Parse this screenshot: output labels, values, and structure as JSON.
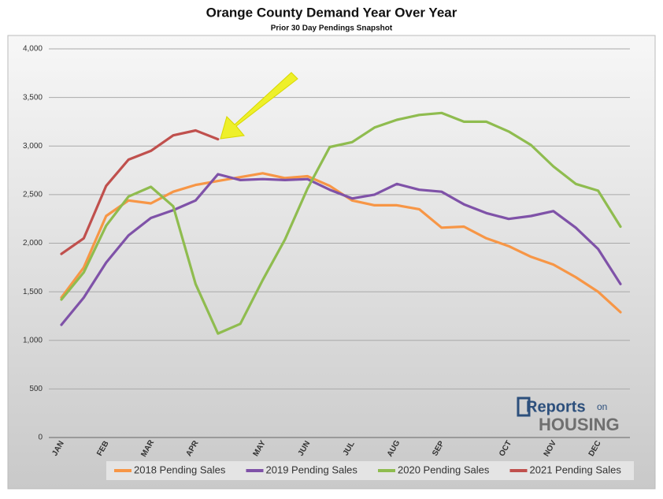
{
  "chart_data": {
    "type": "line",
    "title": "Orange County Demand Year Over Year",
    "subtitle": "Prior 30 Day Pendings Snapshot",
    "categories": [
      "JAN",
      null,
      "FEB",
      null,
      "MAR",
      null,
      "APR",
      null,
      null,
      "MAY",
      null,
      "JUN",
      null,
      "JUL",
      null,
      "AUG",
      null,
      "SEP",
      null,
      null,
      "OCT",
      null,
      "NOV",
      null,
      "DEC",
      null
    ],
    "series": [
      {
        "name": "2018 Pending Sales",
        "color": "#f79646",
        "values": [
          1440,
          1750,
          2280,
          2440,
          2410,
          2530,
          2600,
          2640,
          2680,
          2720,
          2670,
          2690,
          2590,
          2440,
          2390,
          2390,
          2350,
          2160,
          2170,
          2050,
          1970,
          1860,
          1780,
          1650,
          1500,
          1290
        ]
      },
      {
        "name": "2019 Pending Sales",
        "color": "#7f52a8",
        "values": [
          1160,
          1440,
          1800,
          2080,
          2260,
          2340,
          2440,
          2710,
          2650,
          2660,
          2650,
          2660,
          2550,
          2460,
          2500,
          2610,
          2550,
          2530,
          2400,
          2310,
          2250,
          2280,
          2330,
          2160,
          1940,
          1580
        ]
      },
      {
        "name": "2020 Pending Sales",
        "color": "#8fbc4f",
        "values": [
          1420,
          1700,
          2180,
          2480,
          2580,
          2380,
          1580,
          1070,
          1170,
          1620,
          2040,
          2560,
          2990,
          3040,
          3190,
          3270,
          3320,
          3340,
          3250,
          3250,
          3150,
          3010,
          2790,
          2610,
          2540,
          2170
        ]
      },
      {
        "name": "2021 Pending Sales",
        "color": "#c0504d",
        "values": [
          1890,
          2050,
          2590,
          2860,
          2950,
          3110,
          3160,
          3070,
          null,
          null,
          null,
          null,
          null,
          null,
          null,
          null,
          null,
          null,
          null,
          null,
          null,
          null,
          null,
          null,
          null,
          null
        ]
      }
    ],
    "ylim": [
      0,
      4000
    ],
    "yticks": [
      0,
      500,
      {
        "value": 1000,
        "label": "1,000"
      },
      {
        "value": 1500,
        "label": "1,500"
      },
      {
        "value": 2000,
        "label": "2,000"
      },
      {
        "value": 2500,
        "label": "2,500"
      },
      {
        "value": 3000,
        "label": "3,000"
      },
      {
        "value": 3500,
        "label": "3,500"
      },
      {
        "value": 4000,
        "label": "4,000"
      }
    ],
    "grid": true,
    "legend": "bottom"
  },
  "logo": {
    "line1": "Reports",
    "line2": "on",
    "line3": "HOUSING"
  }
}
